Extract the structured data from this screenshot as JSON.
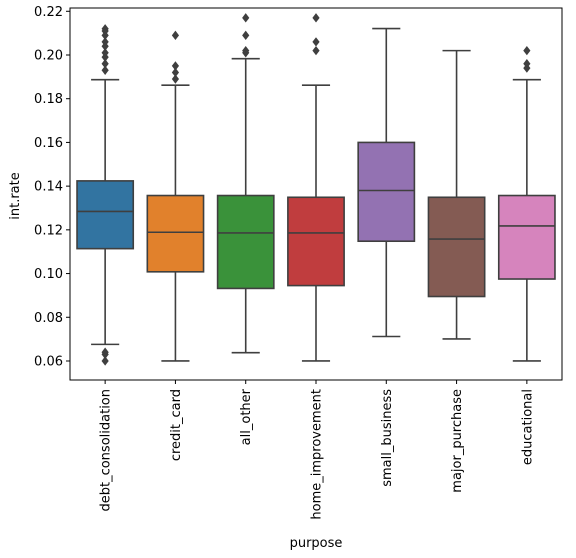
{
  "chart_data": {
    "type": "box",
    "xlabel": "purpose",
    "ylabel": "int.rate",
    "ylim": [
      0.0513,
      0.2215
    ],
    "yticks": [
      0.06,
      0.08,
      0.1,
      0.12,
      0.14,
      0.16,
      0.18,
      0.2,
      0.22
    ],
    "ytick_labels": [
      "0.06",
      "0.08",
      "0.10",
      "0.12",
      "0.14",
      "0.16",
      "0.18",
      "0.20",
      "0.22"
    ],
    "grid": false,
    "legend": "none",
    "categories": [
      "debt_consolidation",
      "credit_card",
      "all_other",
      "home_improvement",
      "small_business",
      "major_purchase",
      "educational"
    ],
    "boxes": [
      {
        "category": "debt_consolidation",
        "whisker_low": 0.0676,
        "q1": 0.1114,
        "median": 0.1284,
        "q3": 0.1424,
        "whisker_high": 0.1887,
        "fliers": [
          0.06,
          0.063,
          0.064,
          0.193,
          0.196,
          0.199,
          0.201,
          0.204,
          0.206,
          0.209,
          0.211,
          0.212
        ],
        "color": "#3274a1"
      },
      {
        "category": "credit_card",
        "whisker_low": 0.06,
        "q1": 0.1008,
        "median": 0.1189,
        "q3": 0.1357,
        "whisker_high": 0.1862,
        "fliers": [
          0.189,
          0.192,
          0.195,
          0.209
        ],
        "color": "#e1812c"
      },
      {
        "category": "all_other",
        "whisker_low": 0.0638,
        "q1": 0.0932,
        "median": 0.1186,
        "q3": 0.1357,
        "whisker_high": 0.1983,
        "fliers": [
          0.201,
          0.202,
          0.209,
          0.217
        ],
        "color": "#3a923a"
      },
      {
        "category": "home_improvement",
        "whisker_low": 0.06,
        "q1": 0.0945,
        "median": 0.1186,
        "q3": 0.1349,
        "whisker_high": 0.1862,
        "fliers": [
          0.202,
          0.206,
          0.217
        ],
        "color": "#c03d3e"
      },
      {
        "category": "small_business",
        "whisker_low": 0.0712,
        "q1": 0.1148,
        "median": 0.138,
        "q3": 0.16,
        "whisker_high": 0.2121,
        "fliers": [],
        "color": "#9372b2"
      },
      {
        "category": "major_purchase",
        "whisker_low": 0.0701,
        "q1": 0.0895,
        "median": 0.1158,
        "q3": 0.1349,
        "whisker_high": 0.202,
        "fliers": [],
        "color": "#845b53"
      },
      {
        "category": "educational",
        "whisker_low": 0.06,
        "q1": 0.0975,
        "median": 0.1218,
        "q3": 0.1357,
        "whisker_high": 0.1887,
        "fliers": [
          0.194,
          0.196,
          0.202
        ],
        "color": "#d684bd"
      }
    ]
  }
}
